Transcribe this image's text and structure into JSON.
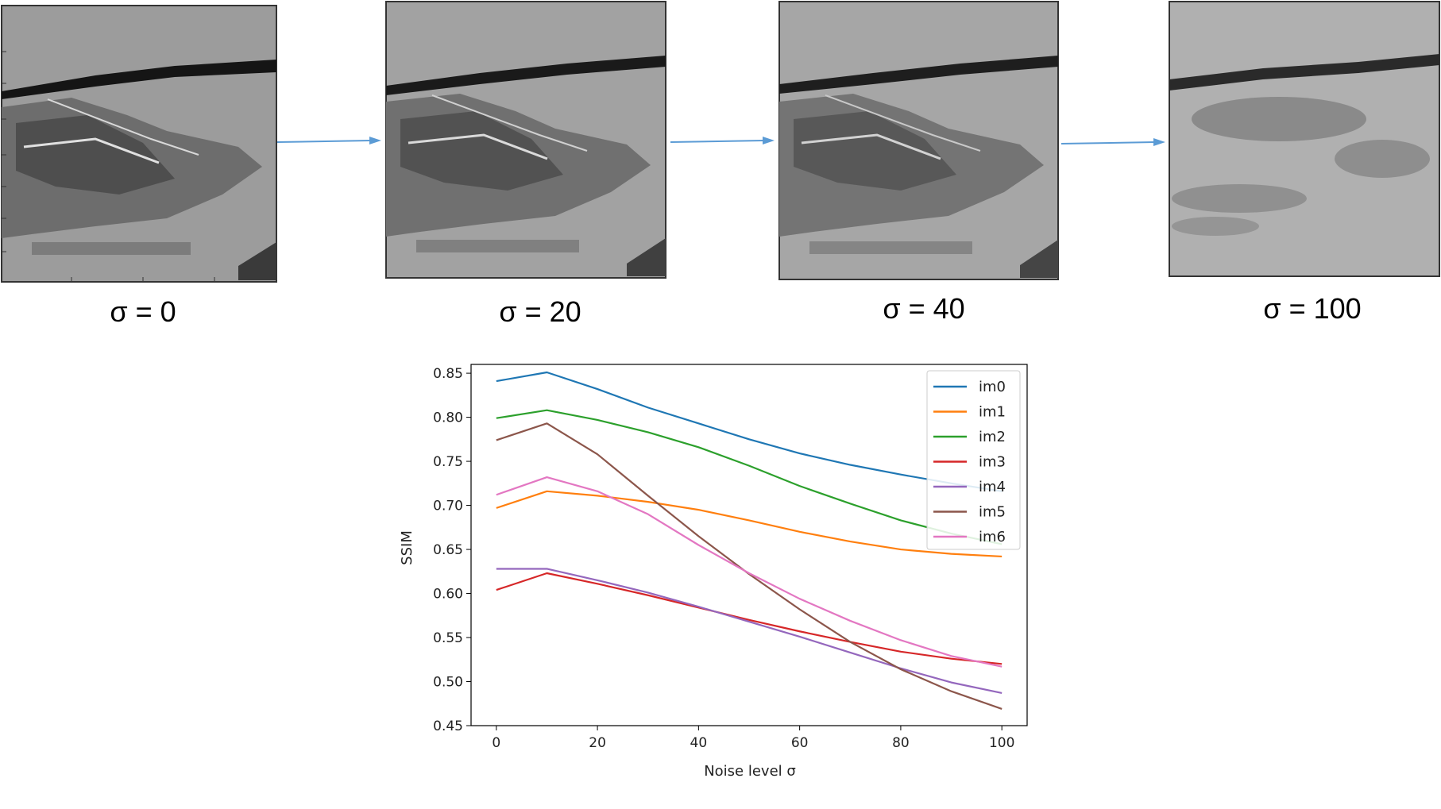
{
  "panels": [
    {
      "caption": "σ = 0"
    },
    {
      "caption": "σ = 20"
    },
    {
      "caption": "σ = 40"
    },
    {
      "caption": "σ = 100"
    }
  ],
  "chart_data": {
    "type": "line",
    "xlabel": "Noise level σ",
    "ylabel": "SSIM",
    "xlim": [
      -5,
      105
    ],
    "ylim": [
      0.45,
      0.86
    ],
    "xticks": [
      0,
      20,
      40,
      60,
      80,
      100
    ],
    "yticks": [
      0.45,
      0.5,
      0.55,
      0.6,
      0.65,
      0.7,
      0.75,
      0.8,
      0.85
    ],
    "grid": false,
    "legend_position": "top-right",
    "x": [
      0,
      10,
      20,
      30,
      40,
      50,
      60,
      70,
      80,
      90,
      100
    ],
    "series": [
      {
        "name": "im0",
        "color": "#1f77b4",
        "values": [
          0.841,
          0.851,
          0.832,
          0.811,
          0.793,
          0.775,
          0.759,
          0.746,
          0.735,
          0.725,
          0.716
        ]
      },
      {
        "name": "im1",
        "color": "#ff7f0e",
        "values": [
          0.697,
          0.716,
          0.711,
          0.704,
          0.695,
          0.683,
          0.67,
          0.659,
          0.65,
          0.645,
          0.642
        ]
      },
      {
        "name": "im2",
        "color": "#2ca02c",
        "values": [
          0.799,
          0.808,
          0.797,
          0.783,
          0.766,
          0.745,
          0.722,
          0.702,
          0.683,
          0.668,
          0.656
        ]
      },
      {
        "name": "im3",
        "color": "#d62728",
        "values": [
          0.604,
          0.623,
          0.611,
          0.598,
          0.584,
          0.57,
          0.557,
          0.545,
          0.534,
          0.526,
          0.52
        ]
      },
      {
        "name": "im4",
        "color": "#9467bd",
        "values": [
          0.628,
          0.628,
          0.615,
          0.601,
          0.585,
          0.568,
          0.551,
          0.533,
          0.515,
          0.499,
          0.487
        ]
      },
      {
        "name": "im5",
        "color": "#8c564b",
        "values": [
          0.774,
          0.793,
          0.758,
          0.711,
          0.665,
          0.622,
          0.582,
          0.545,
          0.514,
          0.489,
          0.469
        ]
      },
      {
        "name": "im6",
        "color": "#e377c2",
        "values": [
          0.712,
          0.732,
          0.716,
          0.69,
          0.655,
          0.623,
          0.594,
          0.569,
          0.547,
          0.529,
          0.517
        ]
      }
    ]
  }
}
